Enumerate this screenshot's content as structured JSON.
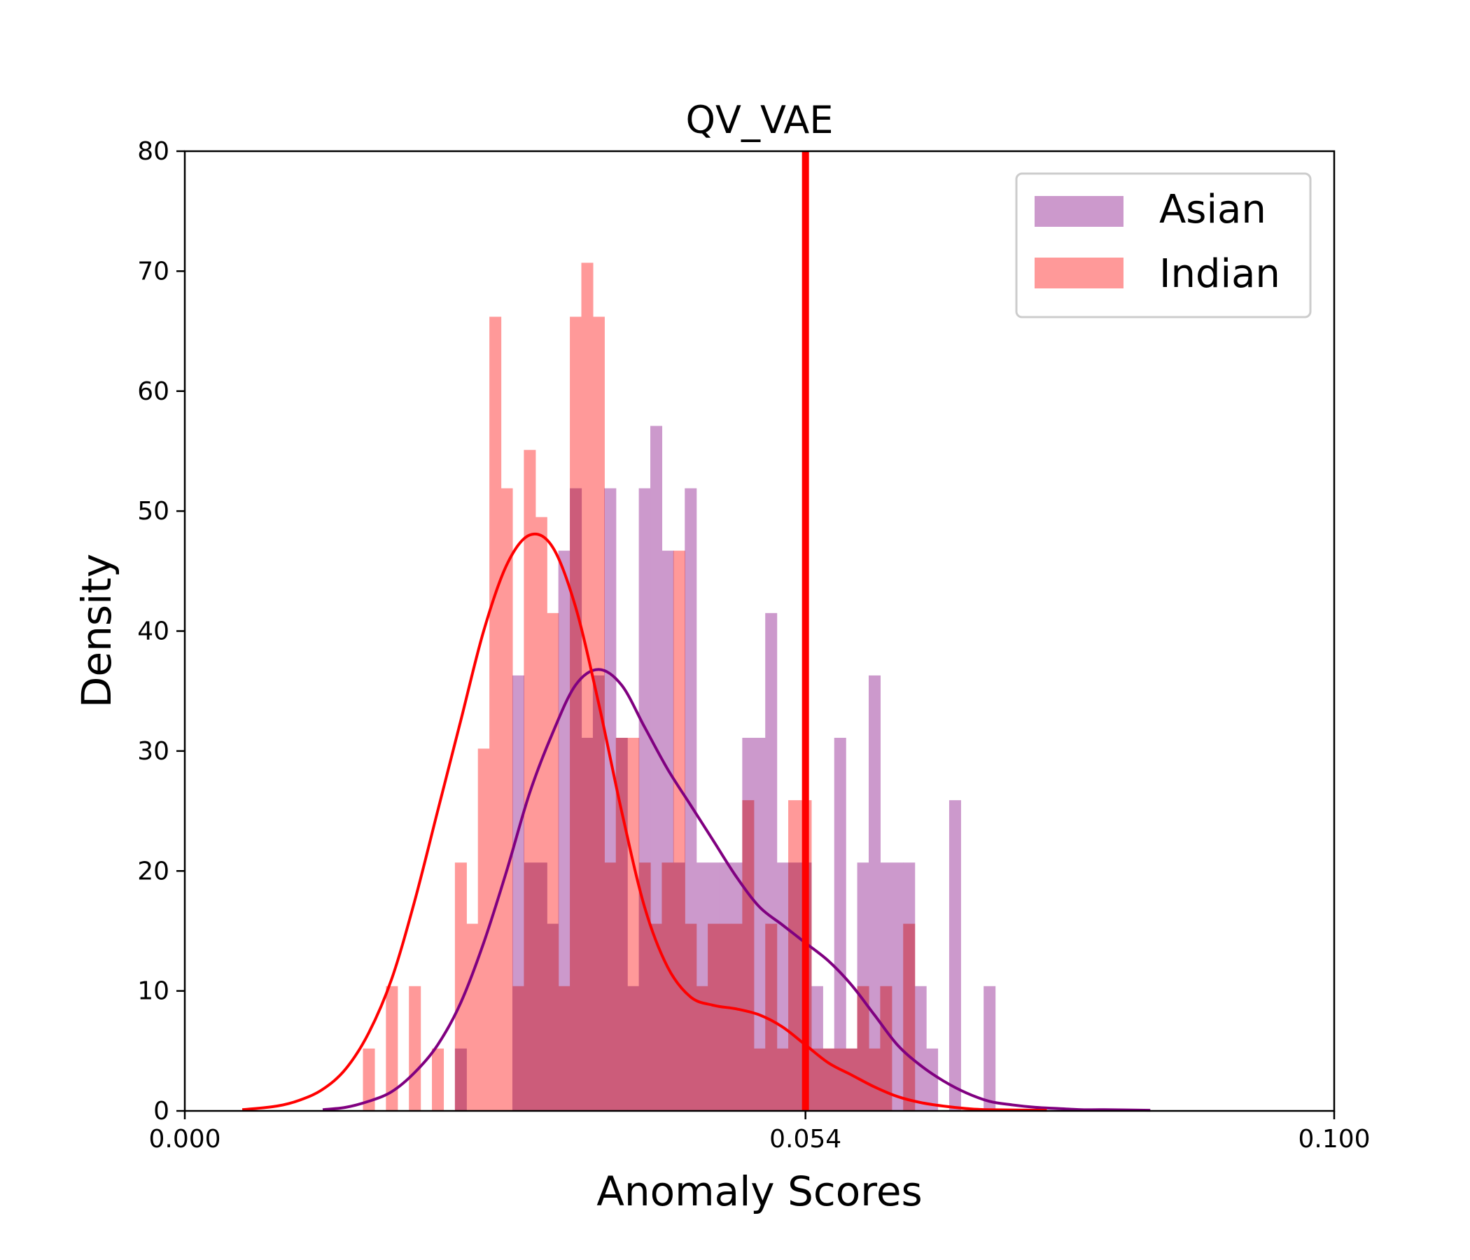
{
  "chart_data": {
    "type": "histogram",
    "title": "QV_VAE",
    "xlabel": "Anomaly Scores",
    "ylabel": "Density",
    "xlim": [
      0.0,
      0.1
    ],
    "ylim": [
      0,
      80
    ],
    "xticks": [
      "0.000",
      "0.054",
      "0.100"
    ],
    "xtick_values": [
      0.0,
      0.054,
      0.1
    ],
    "yticks": [
      "0",
      "10",
      "20",
      "30",
      "40",
      "50",
      "60",
      "70",
      "80"
    ],
    "ytick_values": [
      0,
      10,
      20,
      30,
      40,
      50,
      60,
      70,
      80
    ],
    "threshold": {
      "x": 0.054,
      "color": "#ff0000"
    },
    "legend": {
      "position": "top-right"
    },
    "bin_width": 0.001,
    "series": [
      {
        "name": "Asian",
        "color": "#cc99cc",
        "kde_color": "#800080",
        "bins_start": [
          0.0235,
          0.0285,
          0.0295,
          0.0305,
          0.0315,
          0.0325,
          0.0335,
          0.0345,
          0.0355,
          0.0365,
          0.0375,
          0.0385,
          0.0395,
          0.0405,
          0.0415,
          0.0425,
          0.0435,
          0.0445,
          0.0455,
          0.0465,
          0.0475,
          0.0485,
          0.0495,
          0.0505,
          0.0515,
          0.0525,
          0.0535,
          0.0545,
          0.0555,
          0.0565,
          0.0575,
          0.0585,
          0.0595,
          0.0605,
          0.0615,
          0.0625,
          0.0635,
          0.0645,
          0.0655,
          0.0665,
          0.0675,
          0.0685,
          0.0695
        ],
        "values": [
          5.2,
          36.3,
          20.7,
          20.7,
          15.6,
          46.7,
          51.9,
          31.1,
          36.3,
          51.9,
          31.1,
          10.4,
          51.9,
          57.1,
          46.7,
          20.7,
          51.9,
          20.7,
          20.7,
          20.7,
          20.7,
          31.1,
          31.1,
          41.5,
          20.7,
          20.7,
          20.7,
          10.4,
          5.2,
          31.1,
          5.2,
          20.7,
          36.3,
          20.7,
          20.7,
          20.7,
          10.4,
          5.2,
          0,
          25.9,
          0,
          0,
          10.4
        ],
        "kde_x": [
          0.012,
          0.014,
          0.016,
          0.018,
          0.02,
          0.022,
          0.024,
          0.026,
          0.028,
          0.03,
          0.032,
          0.034,
          0.036,
          0.038,
          0.04,
          0.042,
          0.044,
          0.046,
          0.048,
          0.05,
          0.052,
          0.054,
          0.056,
          0.058,
          0.06,
          0.062,
          0.064,
          0.066,
          0.068,
          0.07,
          0.072,
          0.074,
          0.076,
          0.078,
          0.08,
          0.084
        ],
        "kde_y": [
          0.1,
          0.3,
          0.8,
          1.6,
          3.2,
          5.5,
          9.0,
          14.0,
          20.0,
          26.5,
          31.5,
          35.5,
          36.8,
          35.5,
          32.0,
          28.5,
          25.5,
          22.5,
          19.5,
          17.0,
          15.5,
          14.0,
          12.5,
          10.5,
          8.0,
          5.5,
          3.8,
          2.5,
          1.5,
          0.8,
          0.5,
          0.3,
          0.2,
          0.1,
          0.1,
          0.05
        ]
      },
      {
        "name": "Indian",
        "color": "#ff9999",
        "kde_color": "#ff0000",
        "bins_start": [
          0.0155,
          0.0175,
          0.0195,
          0.0215,
          0.0235,
          0.0245,
          0.0255,
          0.0265,
          0.0275,
          0.0285,
          0.0295,
          0.0305,
          0.0315,
          0.0325,
          0.0335,
          0.0345,
          0.0355,
          0.0365,
          0.0375,
          0.0385,
          0.0395,
          0.0405,
          0.0415,
          0.0425,
          0.0435,
          0.0445,
          0.0455,
          0.0465,
          0.0475,
          0.0485,
          0.0495,
          0.0505,
          0.0515,
          0.0525,
          0.0535,
          0.0545,
          0.0555,
          0.0565,
          0.0575,
          0.0585,
          0.0595,
          0.0605,
          0.0615,
          0.0625,
          0.0635,
          0.0645
        ],
        "values": [
          5.2,
          10.4,
          10.4,
          5.2,
          20.7,
          15.6,
          30.2,
          66.2,
          51.9,
          10.4,
          55.1,
          49.5,
          41.5,
          10.4,
          66.2,
          70.7,
          66.2,
          20.7,
          31.1,
          31.1,
          20.7,
          15.6,
          20.7,
          46.7,
          15.6,
          10.4,
          15.6,
          15.6,
          15.6,
          25.9,
          5.2,
          15.6,
          5.2,
          25.9,
          25.9,
          5.2,
          5.2,
          5.2,
          5.2,
          10.4,
          5.2,
          10.4,
          0,
          15.6,
          0,
          0
        ],
        "kde_x": [
          0.005,
          0.008,
          0.01,
          0.012,
          0.014,
          0.016,
          0.018,
          0.02,
          0.022,
          0.024,
          0.026,
          0.028,
          0.03,
          0.032,
          0.034,
          0.036,
          0.038,
          0.04,
          0.042,
          0.044,
          0.046,
          0.048,
          0.05,
          0.052,
          0.054,
          0.056,
          0.058,
          0.06,
          0.062,
          0.064,
          0.066,
          0.068,
          0.07,
          0.075
        ],
        "kde_y": [
          0.1,
          0.4,
          0.9,
          1.8,
          3.5,
          6.5,
          11.0,
          17.5,
          25.0,
          32.5,
          40.0,
          45.5,
          48.0,
          47.0,
          42.0,
          34.0,
          25.0,
          17.0,
          12.0,
          9.5,
          8.8,
          8.5,
          8.0,
          7.0,
          5.5,
          4.0,
          3.0,
          2.0,
          1.2,
          0.7,
          0.4,
          0.2,
          0.1,
          0.05
        ]
      }
    ]
  }
}
